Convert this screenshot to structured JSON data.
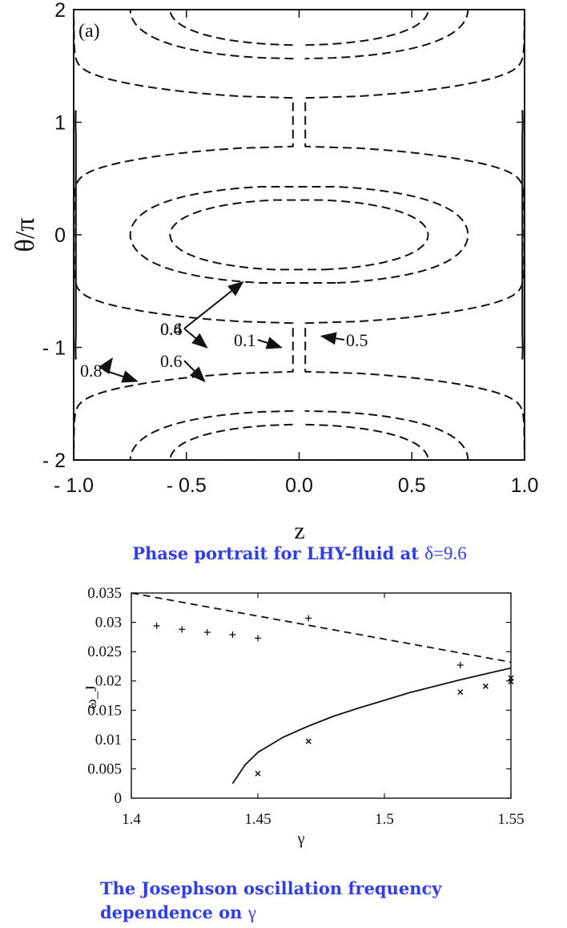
{
  "captions": {
    "top_prefix": "Phase portrait for LHY-fluid at ",
    "top_delta": "δ=9.6",
    "bottom_line1": "The Josephson oscillation frequency",
    "bottom_line2_prefix": "dependence on ",
    "bottom_line2_gamma": "γ"
  },
  "chart_data": [
    {
      "type": "line",
      "panel_label": "(a)",
      "xlabel": "z",
      "ylabel": "θ/π",
      "xlim": [
        -1.0,
        1.0
      ],
      "ylim": [
        -2.0,
        2.0
      ],
      "xticks": [
        "- 1.0",
        "- 0.5",
        "0.0",
        "0.5",
        "1.0"
      ],
      "yticks": [
        "- 2",
        "- 1",
        "0",
        "1",
        "2"
      ],
      "line_styles": [
        "solid",
        "dashed"
      ],
      "annotations": [
        {
          "text": "0.8",
          "x": -0.83,
          "y": -1.1
        },
        {
          "text": "0.8",
          "x": -0.72,
          "y": -1.3
        },
        {
          "text": "0.4",
          "x": -0.25,
          "y": -0.42
        },
        {
          "text": "0.6",
          "x": -0.41,
          "y": -1.0
        },
        {
          "text": "0.6",
          "x": -0.42,
          "y": -1.3
        },
        {
          "text": "0.1",
          "x": -0.08,
          "y": -1.0
        },
        {
          "text": "0.5",
          "x": 0.1,
          "y": -0.9
        }
      ],
      "grid": false
    },
    {
      "type": "scatter",
      "xlabel": "γ",
      "ylabel": "ω_J",
      "xlim": [
        1.4,
        1.55
      ],
      "ylim": [
        0,
        0.035
      ],
      "xticks": [
        "1.4",
        "1.45",
        "1.5",
        "1.55"
      ],
      "yticks": [
        "0",
        "0.005",
        "0.01",
        "0.015",
        "0.02",
        "0.025",
        "0.03",
        "0.035"
      ],
      "series": [
        {
          "style": "dashed-line",
          "x": [
            1.4,
            1.55
          ],
          "y": [
            0.035,
            0.0232
          ]
        },
        {
          "style": "solid-line",
          "x": [
            1.44,
            1.445,
            1.45,
            1.46,
            1.47,
            1.48,
            1.49,
            1.5,
            1.51,
            1.52,
            1.53,
            1.54,
            1.55
          ],
          "y": [
            0.0025,
            0.0057,
            0.0078,
            0.0104,
            0.0123,
            0.014,
            0.0154,
            0.0167,
            0.018,
            0.0191,
            0.0202,
            0.0212,
            0.0222
          ]
        },
        {
          "style": "plus-markers",
          "x": [
            1.41,
            1.42,
            1.43,
            1.44,
            1.45,
            1.47,
            1.53
          ],
          "y": [
            0.0294,
            0.0288,
            0.0283,
            0.0279,
            0.0273,
            0.0307,
            0.0227
          ]
        },
        {
          "style": "cross-markers",
          "x": [
            1.45,
            1.47,
            1.53,
            1.54,
            1.55,
            1.55
          ],
          "y": [
            0.0042,
            0.0097,
            0.0181,
            0.0191,
            0.0199,
            0.0205
          ]
        }
      ],
      "grid": false
    }
  ]
}
